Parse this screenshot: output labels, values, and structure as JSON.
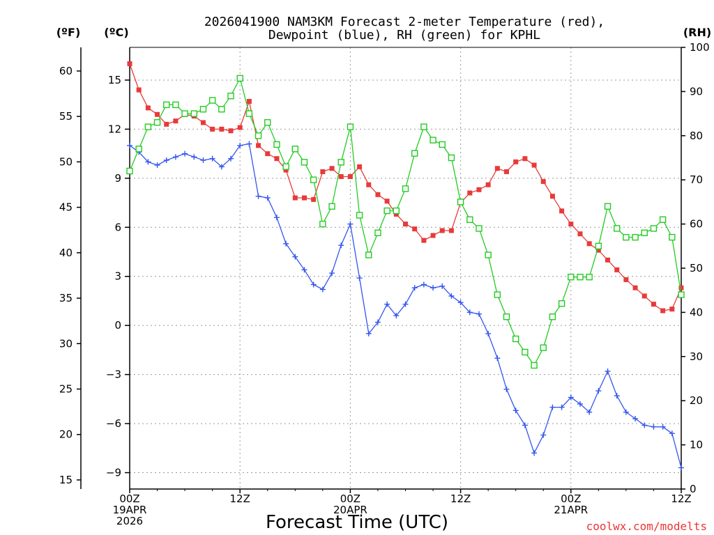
{
  "chart_data": {
    "type": "line",
    "title_line1": "2026041900 NAM3KM Forecast 2-meter Temperature (red),",
    "title_line2": "Dewpoint (blue), RH (green) for KPHL",
    "unit_f": "(ºF)",
    "unit_c": "(ºC)",
    "unit_rh": "(RH)",
    "xlabel": "Forecast Time (UTC)",
    "credit": "coolwx.com/modelts",
    "x_range_hours": [
      0,
      60
    ],
    "y_c_range": [
      -10,
      17
    ],
    "y_f_range": [
      14,
      62.6
    ],
    "y_rh_range": [
      0,
      100
    ],
    "y_c_ticks": [
      -9,
      -6,
      -3,
      0,
      3,
      6,
      9,
      12,
      15
    ],
    "y_f_ticks": [
      15,
      20,
      25,
      30,
      35,
      40,
      45,
      50,
      55,
      60
    ],
    "y_rh_ticks": [
      0,
      10,
      20,
      30,
      40,
      50,
      60,
      70,
      80,
      90,
      100
    ],
    "x_ticks": [
      {
        "hour": 0,
        "lines": [
          "00Z",
          "19APR",
          "2026"
        ]
      },
      {
        "hour": 12,
        "lines": [
          "12Z"
        ]
      },
      {
        "hour": 24,
        "lines": [
          "00Z",
          "20APR"
        ]
      },
      {
        "hour": 36,
        "lines": [
          "12Z"
        ]
      },
      {
        "hour": 48,
        "lines": [
          "00Z",
          "21APR"
        ]
      },
      {
        "hour": 60,
        "lines": [
          "12Z"
        ]
      }
    ],
    "hours": [
      0,
      1,
      2,
      3,
      4,
      5,
      6,
      7,
      8,
      9,
      10,
      11,
      12,
      13,
      14,
      15,
      16,
      17,
      18,
      19,
      20,
      21,
      22,
      23,
      24,
      25,
      26,
      27,
      28,
      29,
      30,
      31,
      32,
      33,
      34,
      35,
      36,
      37,
      38,
      39,
      40,
      41,
      42,
      43,
      44,
      45,
      46,
      47,
      48,
      49,
      50,
      51,
      52,
      53,
      54,
      55,
      56,
      57,
      58,
      59,
      60
    ],
    "series": [
      {
        "name": "2-meter Temperature",
        "unit": "C",
        "color": "#e83a3a",
        "marker": "filled-square",
        "values": [
          16.0,
          14.4,
          13.3,
          12.9,
          12.3,
          12.5,
          12.9,
          12.8,
          12.4,
          12.0,
          12.0,
          11.9,
          12.1,
          13.7,
          11.0,
          10.5,
          10.2,
          9.5,
          7.8,
          7.8,
          7.7,
          9.4,
          9.6,
          9.1,
          9.1,
          9.7,
          8.6,
          8.0,
          7.6,
          6.8,
          6.2,
          5.9,
          5.2,
          5.5,
          5.8,
          5.8,
          7.5,
          8.1,
          8.3,
          8.6,
          9.6,
          9.4,
          10.0,
          10.2,
          9.8,
          8.8,
          7.9,
          7.0,
          6.2,
          5.6,
          5.0,
          4.6,
          4.0,
          3.4,
          2.8,
          2.3,
          1.8,
          1.3,
          0.9,
          1.0,
          2.3
        ]
      },
      {
        "name": "Dewpoint",
        "unit": "C",
        "color": "#3355ee",
        "marker": "plus",
        "values": [
          11.0,
          10.6,
          10.0,
          9.8,
          10.1,
          10.3,
          10.5,
          10.3,
          10.1,
          10.2,
          9.7,
          10.2,
          11.0,
          11.1,
          7.9,
          7.8,
          6.6,
          5.0,
          4.2,
          3.4,
          2.5,
          2.2,
          3.2,
          4.9,
          6.2,
          2.9,
          -0.5,
          0.2,
          1.3,
          0.6,
          1.3,
          2.3,
          2.5,
          2.3,
          2.4,
          1.8,
          1.4,
          0.8,
          0.7,
          -0.5,
          -2.0,
          -3.9,
          -5.2,
          -6.1,
          -7.8,
          -6.7,
          -5.0,
          -5.0,
          -4.4,
          -4.8,
          -5.3,
          -4.0,
          -2.8,
          -4.3,
          -5.3,
          -5.7,
          -6.1,
          -6.2,
          -6.2,
          -6.6,
          -8.7
        ]
      },
      {
        "name": "RH",
        "unit": "%",
        "color": "#22cc22",
        "marker": "open-square",
        "values": [
          72,
          77,
          82,
          83,
          87,
          87,
          85,
          85,
          86,
          88,
          86,
          89,
          93,
          85,
          80,
          83,
          78,
          73,
          77,
          74,
          70,
          60,
          64,
          74,
          82,
          62,
          53,
          58,
          63,
          63,
          68,
          76,
          82,
          79,
          78,
          75,
          65,
          61,
          59,
          53,
          44,
          39,
          34,
          31,
          28,
          32,
          39,
          42,
          48,
          48,
          48,
          55,
          64,
          59,
          57,
          57,
          58,
          59,
          61,
          57,
          44
        ]
      }
    ]
  }
}
